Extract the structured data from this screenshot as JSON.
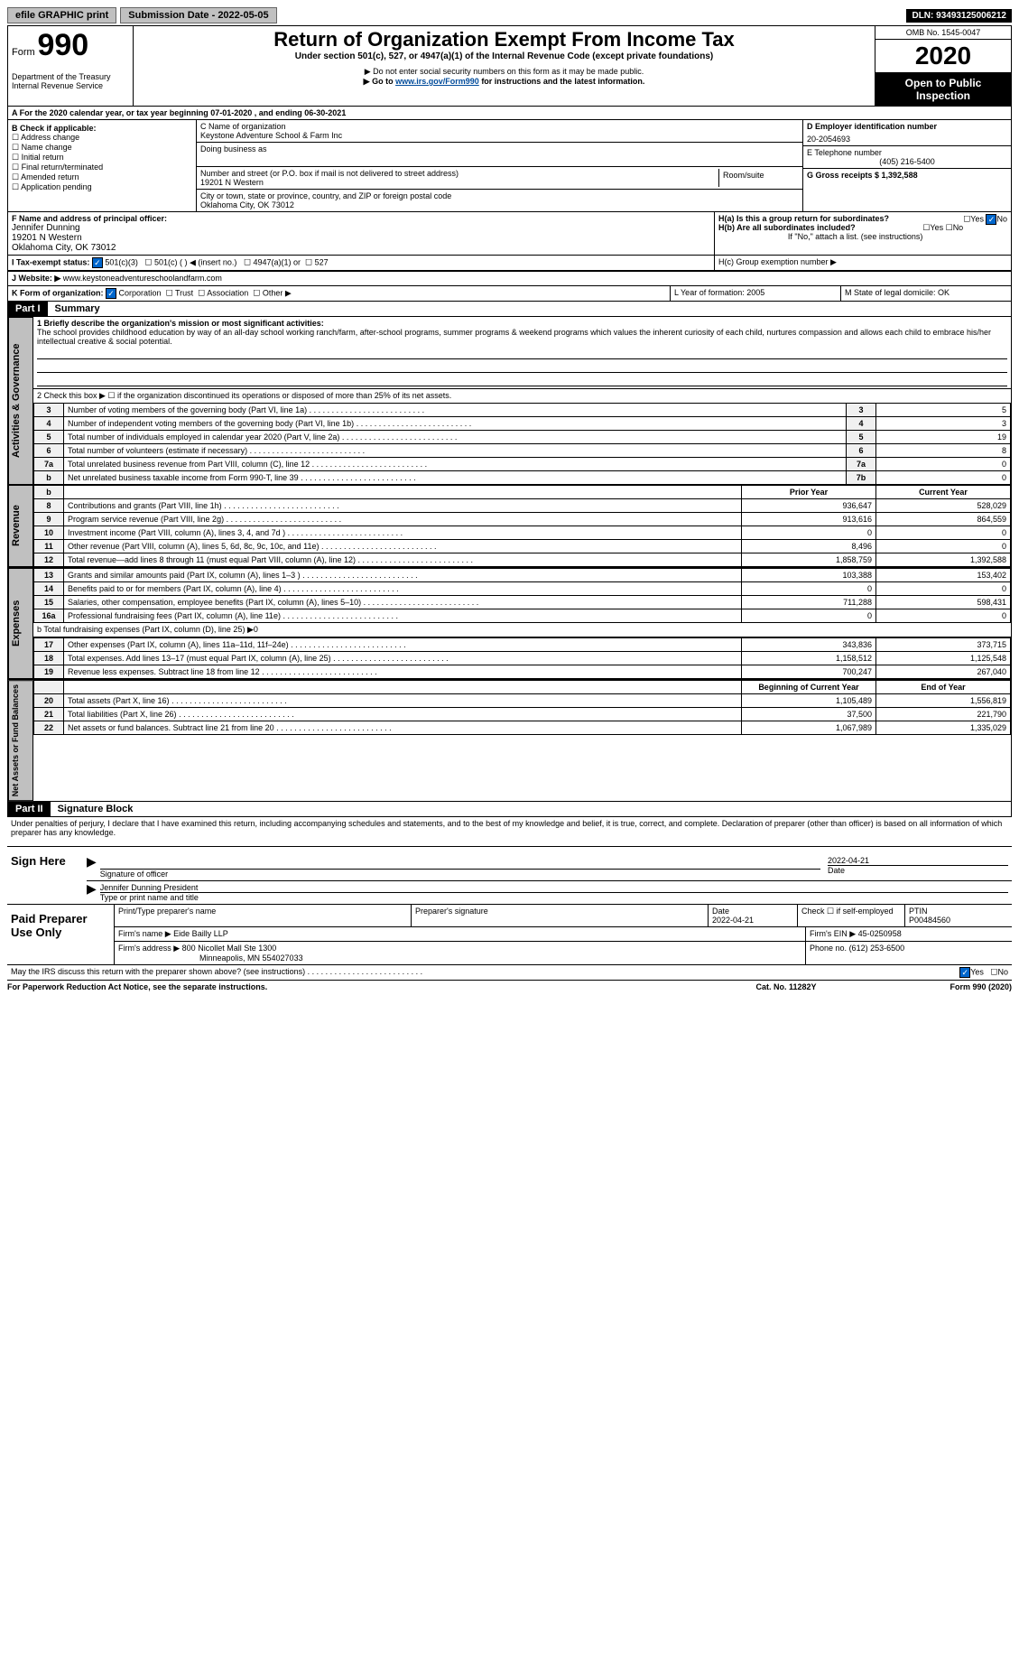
{
  "topbar": {
    "efile": "efile GRAPHIC print",
    "submission_label": "Submission Date - 2022-05-05",
    "dln_label": "DLN: 93493125006212"
  },
  "header": {
    "form_word": "Form",
    "form_number": "990",
    "dept": "Department of the Treasury",
    "irs": "Internal Revenue Service",
    "title": "Return of Organization Exempt From Income Tax",
    "subtitle": "Under section 501(c), 527, or 4947(a)(1) of the Internal Revenue Code (except private foundations)",
    "note1": "▶ Do not enter social security numbers on this form as it may be made public.",
    "note2_pre": "▶ Go to ",
    "note2_link": "www.irs.gov/Form990",
    "note2_post": " for instructions and the latest information.",
    "omb": "OMB No. 1545-0047",
    "year": "2020",
    "open": "Open to Public Inspection"
  },
  "line_a": "A For the 2020 calendar year, or tax year beginning 07-01-2020    , and ending 06-30-2021",
  "box_b": {
    "title": "B Check if applicable:",
    "items": [
      "Address change",
      "Name change",
      "Initial return",
      "Final return/terminated",
      "Amended return",
      "Application pending"
    ]
  },
  "box_c": {
    "label": "C Name of organization",
    "name": "Keystone Adventure School & Farm Inc",
    "dba_label": "Doing business as",
    "addr_label": "Number and street (or P.O. box if mail is not delivered to street address)",
    "room_label": "Room/suite",
    "street": "19201 N Western",
    "city_label": "City or town, state or province, country, and ZIP or foreign postal code",
    "city": "Oklahoma City, OK  73012"
  },
  "box_d": {
    "label": "D Employer identification number",
    "value": "20-2054693"
  },
  "box_e": {
    "label": "E Telephone number",
    "value": "(405) 216-5400"
  },
  "box_g": {
    "label": "G Gross receipts $ 1,392,588"
  },
  "box_f": {
    "label": "F Name and address of principal officer:",
    "name": "Jennifer Dunning",
    "street": "19201 N Western",
    "city": "Oklahoma City, OK  73012"
  },
  "box_h": {
    "a": "H(a)  Is this a group return for subordinates?",
    "b": "H(b)  Are all subordinates included?",
    "note": "If \"No,\" attach a list. (see instructions)",
    "c": "H(c)  Group exemption number ▶",
    "yes": "Yes",
    "no": "No"
  },
  "box_i": {
    "label": "I    Tax-exempt status:",
    "c3": "501(c)(3)",
    "c": "501(c) (  ) ◀ (insert no.)",
    "a1": "4947(a)(1) or",
    "s527": "527"
  },
  "box_j": {
    "label": "J    Website: ▶",
    "value": "www.keystoneadventureschoolandfarm.com"
  },
  "box_k": {
    "label": "K Form of organization:",
    "corp": "Corporation",
    "trust": "Trust",
    "assoc": "Association",
    "other": "Other ▶"
  },
  "box_l": {
    "label": "L Year of formation: 2005"
  },
  "box_m": {
    "label": "M State of legal domicile: OK"
  },
  "parts": {
    "part1": "Part I",
    "part1_title": "Summary",
    "part2": "Part II",
    "part2_title": "Signature Block"
  },
  "summary": {
    "line1_label": "1  Briefly describe the organization's mission or most significant activities:",
    "line1_text": "The school provides childhood education by way of an all-day school working ranch/farm, after-school programs, summer programs & weekend programs which values the inherent curiosity of each child, nurtures compassion and allows each child to embrace his/her intellectual creative & social potential.",
    "line2": "2  Check this box ▶ ☐ if the organization discontinued its operations or disposed of more than 25% of its net assets.",
    "rows_gov": [
      {
        "n": "3",
        "label": "Number of voting members of the governing body (Part VI, line 1a)",
        "box": "3",
        "val": "5"
      },
      {
        "n": "4",
        "label": "Number of independent voting members of the governing body (Part VI, line 1b)",
        "box": "4",
        "val": "3"
      },
      {
        "n": "5",
        "label": "Total number of individuals employed in calendar year 2020 (Part V, line 2a)",
        "box": "5",
        "val": "19"
      },
      {
        "n": "6",
        "label": "Total number of volunteers (estimate if necessary)",
        "box": "6",
        "val": "8"
      },
      {
        "n": "7a",
        "label": "Total unrelated business revenue from Part VIII, column (C), line 12",
        "box": "7a",
        "val": "0"
      },
      {
        "n": "b",
        "label": "Net unrelated business taxable income from Form 990-T, line 39",
        "box": "7b",
        "val": "0"
      }
    ],
    "col_prior": "Prior Year",
    "col_current": "Current Year",
    "col_begin": "Beginning of Current Year",
    "col_end": "End of Year",
    "rev": [
      {
        "n": "8",
        "label": "Contributions and grants (Part VIII, line 1h)",
        "p": "936,647",
        "c": "528,029"
      },
      {
        "n": "9",
        "label": "Program service revenue (Part VIII, line 2g)",
        "p": "913,616",
        "c": "864,559"
      },
      {
        "n": "10",
        "label": "Investment income (Part VIII, column (A), lines 3, 4, and 7d )",
        "p": "0",
        "c": "0"
      },
      {
        "n": "11",
        "label": "Other revenue (Part VIII, column (A), lines 5, 6d, 8c, 9c, 10c, and 11e)",
        "p": "8,496",
        "c": "0"
      },
      {
        "n": "12",
        "label": "Total revenue—add lines 8 through 11 (must equal Part VIII, column (A), line 12)",
        "p": "1,858,759",
        "c": "1,392,588"
      }
    ],
    "exp": [
      {
        "n": "13",
        "label": "Grants and similar amounts paid (Part IX, column (A), lines 1–3 )",
        "p": "103,388",
        "c": "153,402"
      },
      {
        "n": "14",
        "label": "Benefits paid to or for members (Part IX, column (A), line 4)",
        "p": "0",
        "c": "0"
      },
      {
        "n": "15",
        "label": "Salaries, other compensation, employee benefits (Part IX, column (A), lines 5–10)",
        "p": "711,288",
        "c": "598,431"
      },
      {
        "n": "16a",
        "label": "Professional fundraising fees (Part IX, column (A), line 11e)",
        "p": "0",
        "c": "0"
      }
    ],
    "exp_b": "b  Total fundraising expenses (Part IX, column (D), line 25) ▶0",
    "exp2": [
      {
        "n": "17",
        "label": "Other expenses (Part IX, column (A), lines 11a–11d, 11f–24e)",
        "p": "343,836",
        "c": "373,715"
      },
      {
        "n": "18",
        "label": "Total expenses. Add lines 13–17 (must equal Part IX, column (A), line 25)",
        "p": "1,158,512",
        "c": "1,125,548"
      },
      {
        "n": "19",
        "label": "Revenue less expenses. Subtract line 18 from line 12",
        "p": "700,247",
        "c": "267,040"
      }
    ],
    "net": [
      {
        "n": "20",
        "label": "Total assets (Part X, line 16)",
        "p": "1,105,489",
        "c": "1,556,819"
      },
      {
        "n": "21",
        "label": "Total liabilities (Part X, line 26)",
        "p": "37,500",
        "c": "221,790"
      },
      {
        "n": "22",
        "label": "Net assets or fund balances. Subtract line 21 from line 20",
        "p": "1,067,989",
        "c": "1,335,029"
      }
    ]
  },
  "tabs": {
    "gov": "Activities & Governance",
    "rev": "Revenue",
    "exp": "Expenses",
    "net": "Net Assets or Fund Balances"
  },
  "sig": {
    "penalties": "Under penalties of perjury, I declare that I have examined this return, including accompanying schedules and statements, and to the best of my knowledge and belief, it is true, correct, and complete. Declaration of preparer (other than officer) is based on all information of which preparer has any knowledge.",
    "sign_here": "Sign Here",
    "sig_officer": "Signature of officer",
    "date_label": "Date",
    "date": "2022-04-21",
    "name": "Jennifer Dunning  President",
    "name_label": "Type or print name and title",
    "paid": "Paid Preparer Use Only",
    "print_label": "Print/Type preparer's name",
    "prep_sig_label": "Preparer's signature",
    "prep_date": "Date\n2022-04-21",
    "check_self": "Check ☐ if self-employed",
    "ptin_label": "PTIN",
    "ptin": "P00484560",
    "firm_name_label": "Firm's name    ▶",
    "firm_name": "Eide Bailly LLP",
    "firm_ein_label": "Firm's EIN ▶",
    "firm_ein": "45-0250958",
    "firm_addr_label": "Firm's address ▶",
    "firm_addr1": "800 Nicollet Mall Ste 1300",
    "firm_addr2": "Minneapolis, MN  554027033",
    "phone_label": "Phone no.",
    "phone": "(612) 253-6500",
    "may_irs": "May the IRS discuss this return with the preparer shown above? (see instructions)",
    "yes": "Yes",
    "no": "No"
  },
  "footer": {
    "left": "For Paperwork Reduction Act Notice, see the separate instructions.",
    "center": "Cat. No. 11282Y",
    "right": "Form 990 (2020)"
  }
}
